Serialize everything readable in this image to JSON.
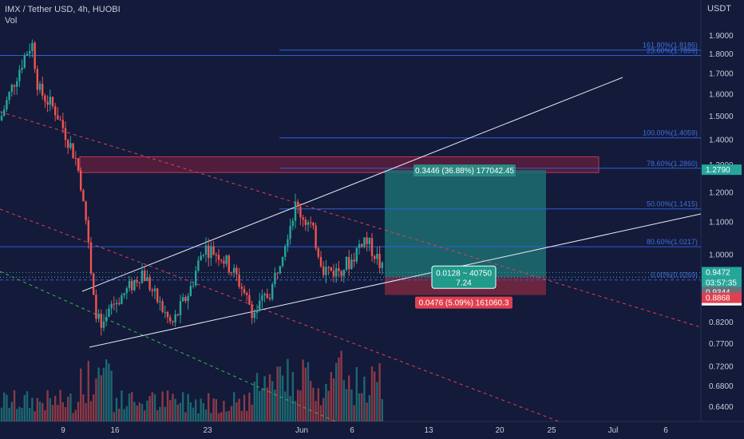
{
  "header": {
    "title": "IMX / Tether USD, 4h, HUOBI",
    "volume_label": "Vol"
  },
  "currency": "USDT",
  "chart_data": {
    "type": "candlestick",
    "symbol": "IMX / Tether USD",
    "interval": "4h",
    "exchange": "HUOBI",
    "y_scale": "log",
    "y_ticks": [
      {
        "v": 1.9,
        "label": "1.9000"
      },
      {
        "v": 1.8,
        "label": "1.8000"
      },
      {
        "v": 1.7,
        "label": "1.7000"
      },
      {
        "v": 1.6,
        "label": "1.6000"
      },
      {
        "v": 1.5,
        "label": "1.5000"
      },
      {
        "v": 1.4,
        "label": "1.4000"
      },
      {
        "v": 1.3,
        "label": "1.3000"
      },
      {
        "v": 1.2,
        "label": "1.2000"
      },
      {
        "v": 1.1,
        "label": "1.1000"
      },
      {
        "v": 1.0,
        "label": "1.0000"
      },
      {
        "v": 0.82,
        "label": "0.8200"
      },
      {
        "v": 0.77,
        "label": "0.7700"
      },
      {
        "v": 0.72,
        "label": "0.7200"
      },
      {
        "v": 0.68,
        "label": "0.6800"
      },
      {
        "v": 0.64,
        "label": "0.6400"
      }
    ],
    "x_ticks": [
      {
        "x": "May 9",
        "label": "9"
      },
      {
        "x": "May 16",
        "label": "16"
      },
      {
        "x": "May 23",
        "label": "23"
      },
      {
        "x": "Jun 1",
        "label": "Jun"
      },
      {
        "x": "Jun 6",
        "label": "6"
      },
      {
        "x": "Jun 13",
        "label": "13"
      },
      {
        "x": "Jun 20",
        "label": "20"
      },
      {
        "x": "Jun 25",
        "label": "25"
      },
      {
        "x": "Jul 1",
        "label": "Jul"
      },
      {
        "x": "Jul 6",
        "label": "6"
      }
    ],
    "fib_levels": [
      {
        "label": "161.80%(1.8186)",
        "price": 1.8186
      },
      {
        "label": "23.60%(1.7899)",
        "price": 1.7899
      },
      {
        "label": "100.00%(1.4059)",
        "price": 1.4059
      },
      {
        "label": "78.60%(1.2860)",
        "price": 1.286
      },
      {
        "label": "50.00%(1.1415)",
        "price": 1.1415
      },
      {
        "label": "80.60%(1.0217)",
        "price": 1.0217
      },
      {
        "label": "0.00%(0.9269)",
        "price": 0.9269
      }
    ],
    "position": {
      "target_label": "0.3446 (36.88%) 177042.45",
      "stop_label": "0.0476 (5.09%) 161060.3",
      "center_label_1": "0.0128 ~ 40750",
      "center_label_2": "7.24",
      "entry": 0.9344,
      "target": 1.279,
      "stop": 0.8868
    },
    "price_badges": [
      {
        "label": "1.2790",
        "bg": "#26a69a",
        "fg": "#ffffff"
      },
      {
        "label": "0.9472",
        "bg": "#26a69a",
        "fg": "#ffffff"
      },
      {
        "label": "03:57:35",
        "bg": "#26a69a",
        "fg": "#ffffff"
      },
      {
        "label": "0.9344",
        "bg": "#6b6f7a",
        "fg": "#ffffff"
      },
      {
        "label": "0.9269",
        "bg": "#ffffff",
        "fg": "#131722"
      },
      {
        "label": "0.8868",
        "bg": "#e0404f",
        "fg": "#ffffff"
      }
    ],
    "colors": {
      "background": "#131a3a",
      "up": "#26a69a",
      "down": "#ef5350",
      "fib": "#2f5fd6",
      "trendline": "#e8ecf5",
      "resistance_zone": "#7a1f3d",
      "target_zone": "#1d6e72",
      "stop_zone": "#7a2940",
      "dashed_red": "#e0404f",
      "dashed_green": "#3ab54a"
    }
  }
}
